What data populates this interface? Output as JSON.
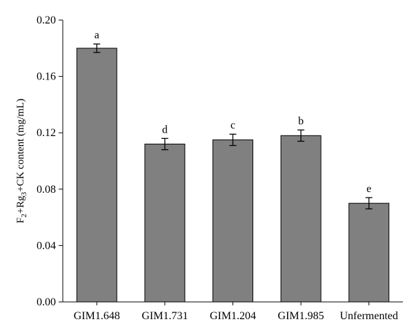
{
  "chart_data": {
    "type": "bar",
    "categories": [
      "GIM1.648",
      "GIM1.731",
      "GIM1.204",
      "GIM1.985",
      "Unfermented"
    ],
    "values": [
      0.18,
      0.112,
      0.115,
      0.118,
      0.07
    ],
    "errors": [
      0.003,
      0.004,
      0.004,
      0.004,
      0.004
    ],
    "significance": [
      "a",
      "d",
      "c",
      "b",
      "e"
    ],
    "ylabel_parts": [
      "F",
      "2",
      "+Rg",
      "3",
      "+CK content (mg/mL)"
    ],
    "ylim": [
      0,
      0.2
    ],
    "yticks": [
      "0.00",
      "0.04",
      "0.08",
      "0.12",
      "0.16",
      "0.20"
    ],
    "grid": false,
    "colors": {
      "bar": "#808080",
      "bar_edge": "#000000",
      "axis": "#000000"
    }
  }
}
